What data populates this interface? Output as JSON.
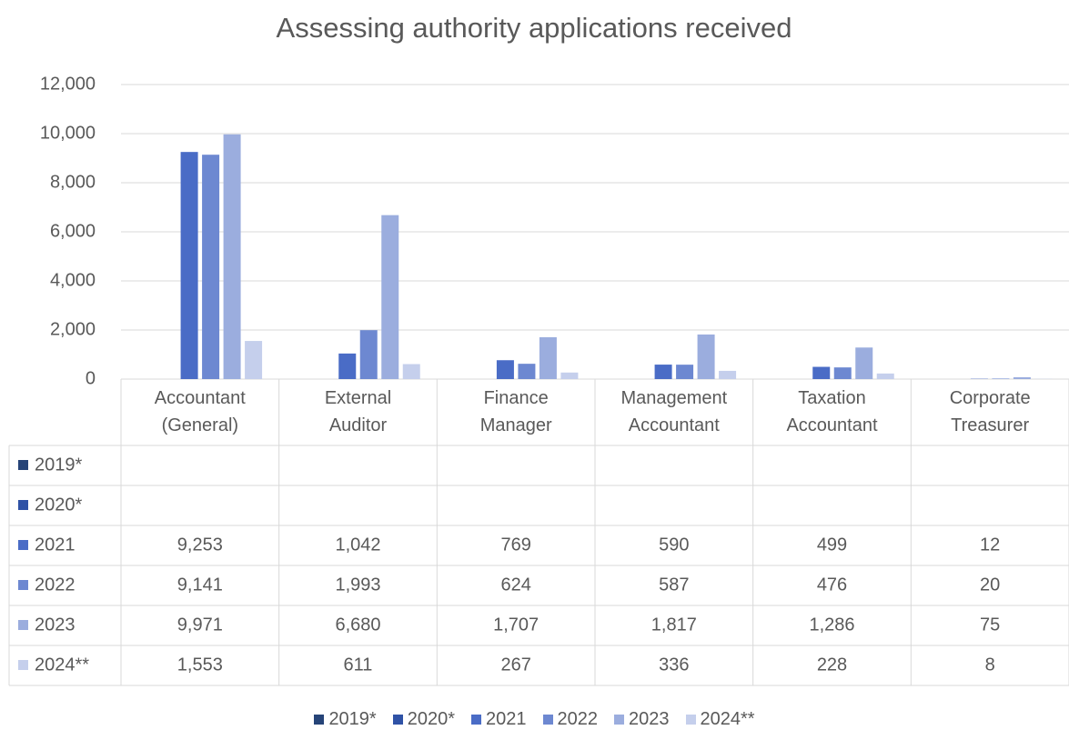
{
  "chart_data": {
    "type": "bar",
    "title": "Assessing authority applications received",
    "categories": [
      "Accountant (General)",
      "External Auditor",
      "Finance Manager",
      "Management Accountant",
      "Taxation Accountant",
      "Corporate Treasurer"
    ],
    "series": [
      {
        "name": "2019*",
        "color": "#264478",
        "values": [
          null,
          null,
          null,
          null,
          null,
          null
        ]
      },
      {
        "name": "2020*",
        "color": "#2f52a6",
        "values": [
          null,
          null,
          null,
          null,
          null,
          null
        ]
      },
      {
        "name": "2021",
        "color": "#4a6cc6",
        "values": [
          9253,
          1042,
          769,
          590,
          499,
          12
        ],
        "value_labels": [
          "9,253",
          "1,042",
          "769",
          "590",
          "499",
          "12"
        ]
      },
      {
        "name": "2022",
        "color": "#6d88d1",
        "values": [
          9141,
          1993,
          624,
          587,
          476,
          20
        ],
        "value_labels": [
          "9,141",
          "1,993",
          "624",
          "587",
          "476",
          "20"
        ]
      },
      {
        "name": "2023",
        "color": "#9badde",
        "values": [
          9971,
          6680,
          1707,
          1817,
          1286,
          75
        ],
        "value_labels": [
          "9,971",
          "6,680",
          "1,707",
          "1,817",
          "1,286",
          "75"
        ]
      },
      {
        "name": "2024**",
        "color": "#c5cfec",
        "values": [
          1553,
          611,
          267,
          336,
          228,
          8
        ],
        "value_labels": [
          "1,553",
          "611",
          "267",
          "336",
          "228",
          "8"
        ]
      }
    ],
    "ylim": [
      0,
      12000
    ],
    "yticks": [
      0,
      {
        "value": 2000,
        "label": "2,000"
      },
      {
        "value": 4000,
        "label": "4,000"
      },
      {
        "value": 6000,
        "label": "6,000"
      },
      {
        "value": 8000,
        "label": "8,000"
      },
      {
        "value": 10000,
        "label": "10,000"
      },
      {
        "value": 12000,
        "label": "12,000"
      }
    ],
    "grid": true
  }
}
